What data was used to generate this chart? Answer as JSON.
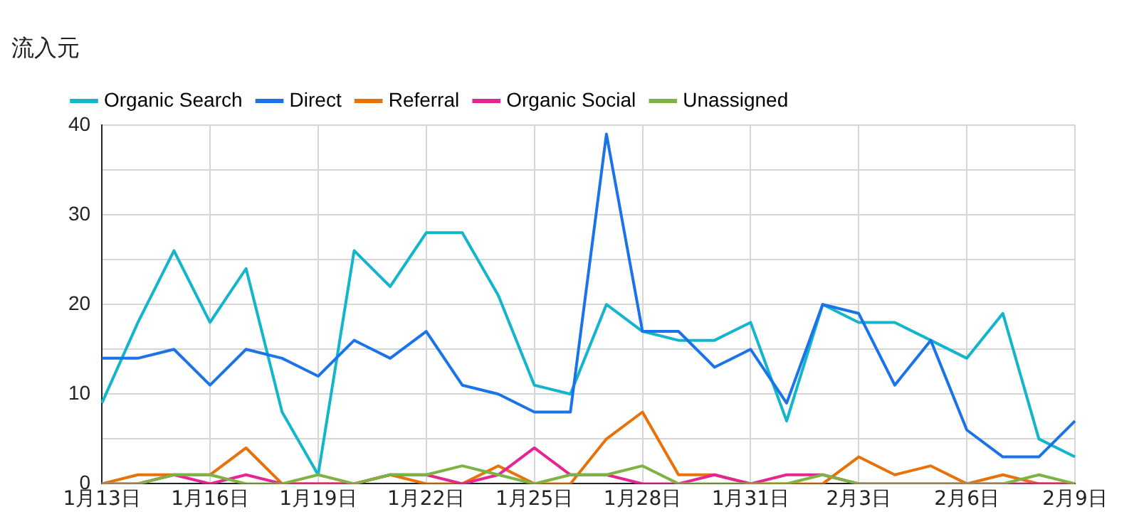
{
  "chart_data": {
    "type": "line",
    "title": "流入元",
    "categories": [
      "1月13日",
      null,
      null,
      "1月16日",
      null,
      null,
      "1月19日",
      null,
      null,
      "1月22日",
      null,
      null,
      "1月25日",
      null,
      null,
      "1月28日",
      null,
      null,
      "1月31日",
      null,
      null,
      "2月3日",
      null,
      null,
      "2月6日",
      null,
      null,
      "2月9日"
    ],
    "series": [
      {
        "name": "Organic Search",
        "color": "#12b5cb",
        "values": [
          9,
          18,
          26,
          18,
          24,
          8,
          1,
          26,
          22,
          28,
          28,
          21,
          11,
          10,
          20,
          17,
          16,
          16,
          18,
          7,
          20,
          18,
          18,
          16,
          14,
          19,
          5,
          3
        ]
      },
      {
        "name": "Direct",
        "color": "#1a73e8",
        "values": [
          14,
          14,
          15,
          11,
          15,
          14,
          12,
          16,
          14,
          17,
          11,
          10,
          8,
          8,
          39,
          17,
          17,
          13,
          15,
          9,
          20,
          19,
          11,
          16,
          6,
          3,
          3,
          7
        ]
      },
      {
        "name": "Referral",
        "color": "#e8710a",
        "values": [
          0,
          1,
          1,
          1,
          4,
          0,
          0,
          0,
          1,
          0,
          0,
          2,
          0,
          0,
          5,
          8,
          1,
          1,
          0,
          0,
          0,
          3,
          1,
          2,
          0,
          1,
          0,
          0
        ]
      },
      {
        "name": "Organic Social",
        "color": "#e52592",
        "values": [
          0,
          0,
          1,
          0,
          1,
          0,
          0,
          0,
          1,
          1,
          0,
          1,
          4,
          1,
          1,
          0,
          0,
          1,
          0,
          1,
          1,
          0,
          0,
          0,
          0,
          0,
          0,
          0
        ]
      },
      {
        "name": "Unassigned",
        "color": "#7cb342",
        "values": [
          0,
          0,
          1,
          1,
          0,
          0,
          1,
          0,
          1,
          1,
          2,
          1,
          0,
          1,
          1,
          2,
          0,
          0,
          0,
          0,
          1,
          0,
          0,
          0,
          0,
          0,
          1,
          0
        ]
      }
    ],
    "ylim": [
      0,
      40
    ],
    "yticks": [
      0,
      {
        "value": 5,
        "label": null
      },
      10,
      {
        "value": 15,
        "label": null
      },
      20,
      {
        "value": 25,
        "label": null
      },
      30,
      {
        "value": 35,
        "label": null
      },
      40
    ],
    "grid": true,
    "legend": "top left",
    "marker": "none",
    "line_style": "solid"
  }
}
